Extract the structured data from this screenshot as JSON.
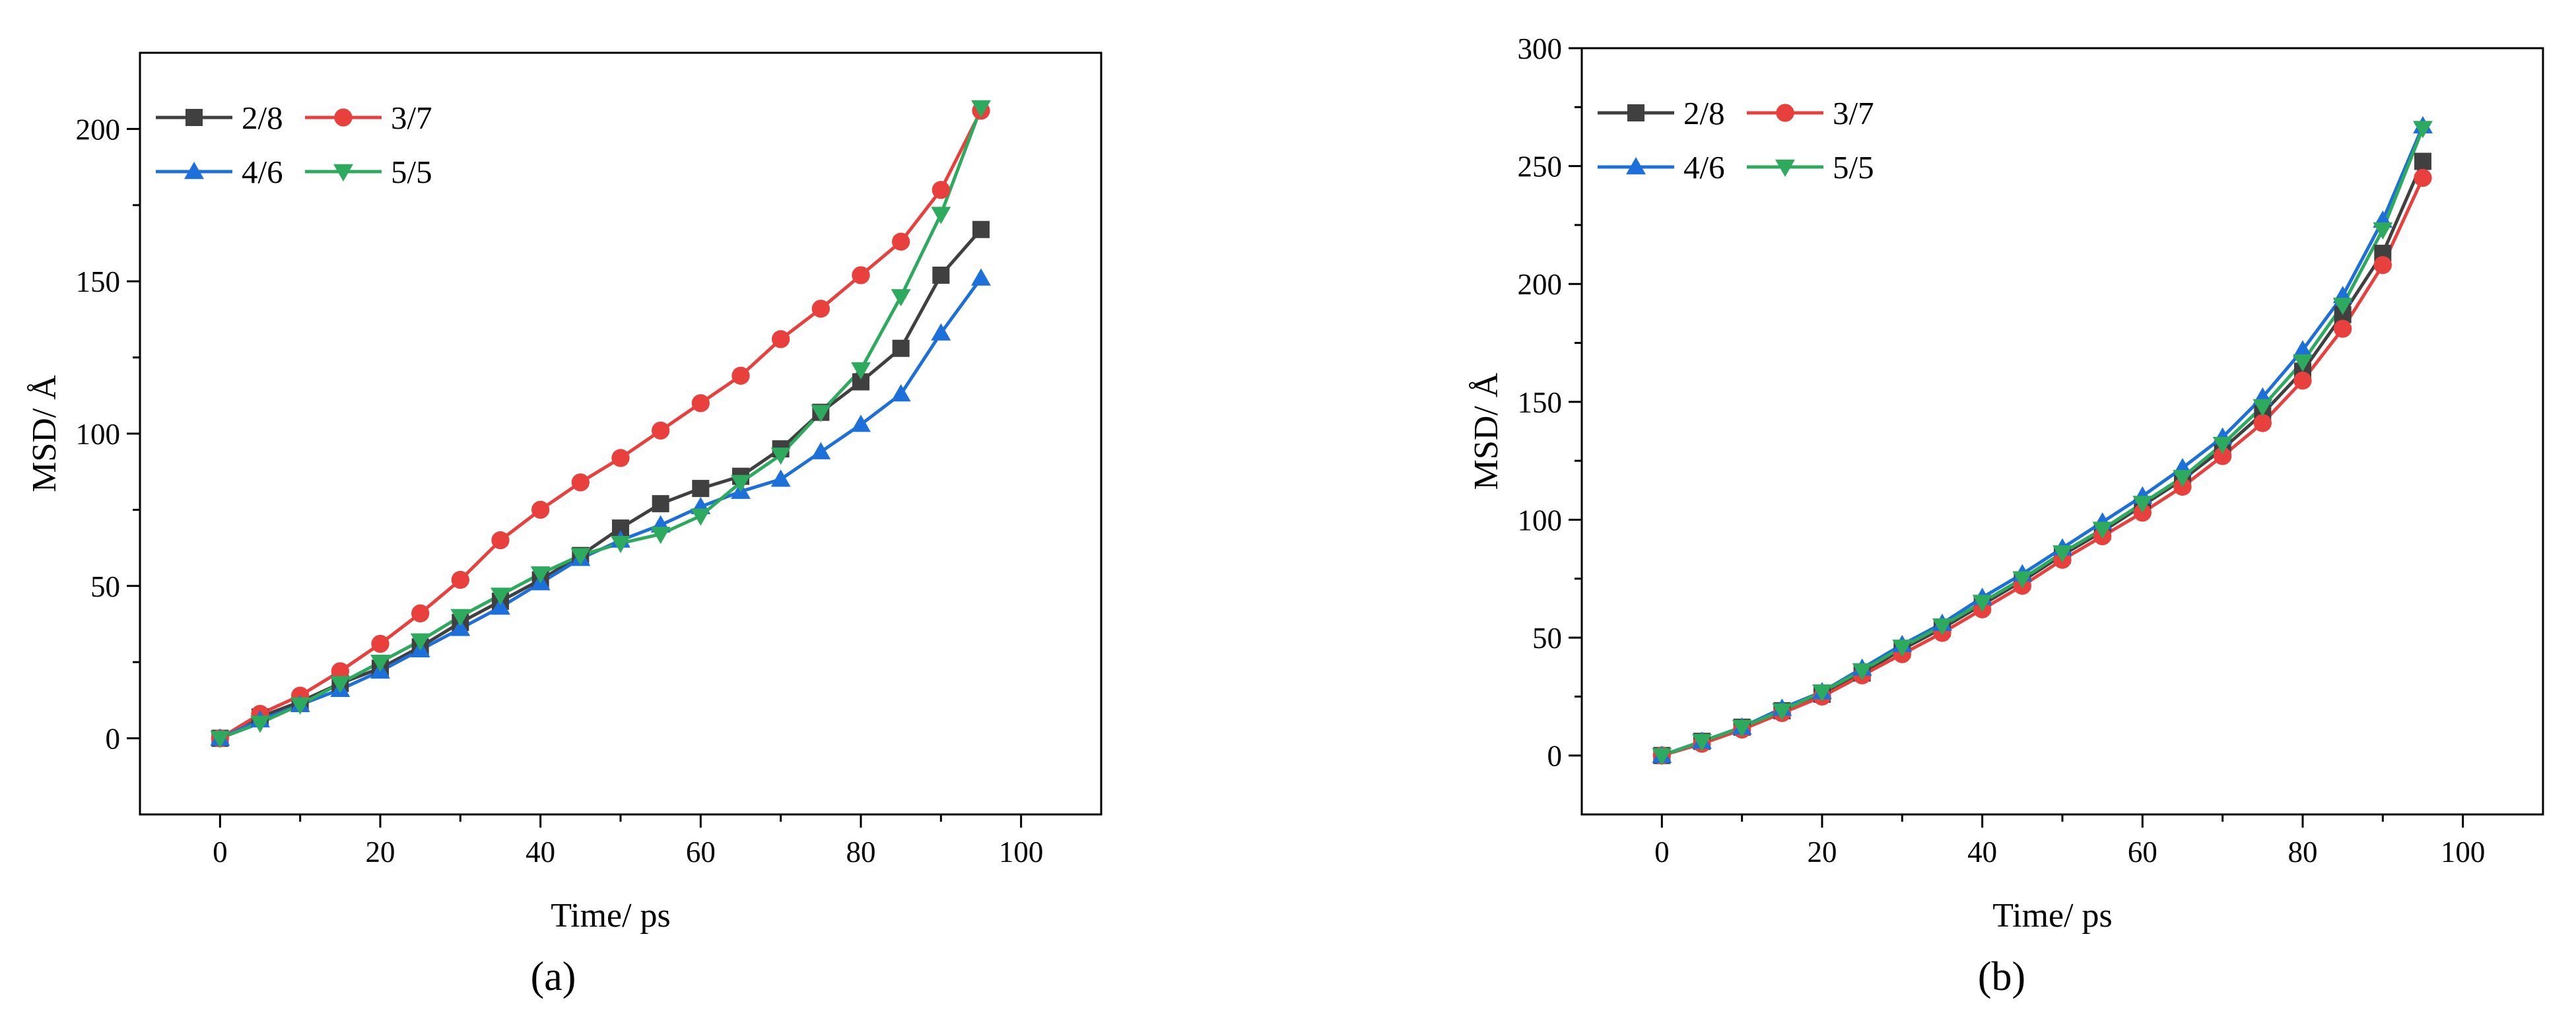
{
  "chart_data": [
    {
      "panel_label": "a",
      "type": "line",
      "title": "",
      "xlabel": "Time/ ps",
      "ylabel": "MSD/ Å",
      "xlim": [
        -10,
        110
      ],
      "ylim": [
        -25,
        225
      ],
      "xticks": [
        0,
        20,
        40,
        60,
        80,
        100
      ],
      "yticks": [
        0,
        50,
        100,
        150,
        200
      ],
      "grid": false,
      "legend_placement": "top-left",
      "x": [
        0,
        5,
        10,
        15,
        20,
        25,
        30,
        35,
        40,
        45,
        50,
        55,
        60,
        65,
        70,
        75,
        80,
        85,
        90,
        95
      ],
      "series": [
        {
          "name": "2/8",
          "color": "#404040",
          "marker": "square",
          "values": [
            0,
            7,
            12,
            18,
            23,
            30,
            38,
            45,
            52,
            60,
            69,
            77,
            82,
            86,
            95,
            107,
            117,
            128,
            152,
            167
          ]
        },
        {
          "name": "3/7",
          "color": "#e8403c",
          "marker": "circle",
          "values": [
            0,
            8,
            14,
            22,
            31,
            41,
            52,
            65,
            75,
            84,
            92,
            101,
            110,
            119,
            131,
            141,
            152,
            163,
            180,
            206
          ]
        },
        {
          "name": "4/6",
          "color": "#1d6fd9",
          "marker": "triangle-up",
          "values": [
            0,
            6,
            11,
            16,
            22,
            29,
            36,
            43,
            51,
            59,
            65,
            70,
            76,
            81,
            85,
            94,
            103,
            113,
            133,
            151
          ]
        },
        {
          "name": "5/5",
          "color": "#2eaa5e",
          "marker": "triangle-down",
          "values": [
            0,
            5,
            11,
            18,
            25,
            32,
            40,
            47,
            54,
            60,
            64,
            67,
            73,
            84,
            93,
            107,
            121,
            145,
            172,
            207
          ]
        }
      ]
    },
    {
      "panel_label": "b",
      "type": "line",
      "title": "",
      "xlabel": "Time/ ps",
      "ylabel": "MSD/ Å",
      "xlim": [
        -10,
        110
      ],
      "ylim": [
        -25,
        300
      ],
      "xticks": [
        0,
        20,
        40,
        60,
        80,
        100
      ],
      "yticks": [
        0,
        50,
        100,
        150,
        200,
        250,
        300
      ],
      "grid": false,
      "legend_placement": "top-left",
      "x": [
        0,
        5,
        10,
        15,
        20,
        25,
        30,
        35,
        40,
        45,
        50,
        55,
        60,
        65,
        70,
        75,
        80,
        85,
        90,
        95
      ],
      "series": [
        {
          "name": "2/8",
          "color": "#404040",
          "marker": "square",
          "values": [
            0,
            6,
            12,
            19,
            26,
            35,
            45,
            54,
            64,
            74,
            85,
            95,
            106,
            117,
            130,
            145,
            163,
            187,
            213,
            252
          ]
        },
        {
          "name": "3/7",
          "color": "#e8403c",
          "marker": "circle",
          "values": [
            0,
            5,
            11,
            18,
            25,
            34,
            43,
            52,
            62,
            72,
            83,
            93,
            103,
            114,
            127,
            141,
            159,
            181,
            208,
            245
          ]
        },
        {
          "name": "4/6",
          "color": "#1d6fd9",
          "marker": "triangle-up",
          "values": [
            0,
            6,
            12,
            20,
            27,
            37,
            47,
            56,
            67,
            77,
            88,
            99,
            110,
            122,
            135,
            152,
            172,
            195,
            227,
            267
          ]
        },
        {
          "name": "5/5",
          "color": "#2eaa5e",
          "marker": "triangle-down",
          "values": [
            0,
            6,
            12,
            19,
            27,
            36,
            46,
            55,
            65,
            75,
            86,
            96,
            107,
            118,
            132,
            148,
            167,
            191,
            223,
            266
          ]
        }
      ]
    }
  ],
  "captions": [
    "(a)",
    "(b)"
  ]
}
